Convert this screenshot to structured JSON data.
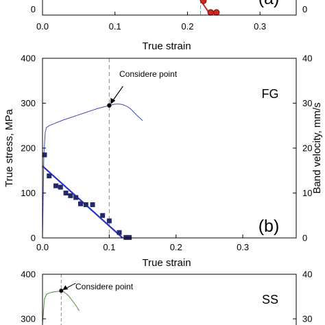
{
  "chart_data": [
    {
      "type": "scatter",
      "panel_label": "(a)",
      "xlabel": "True strain",
      "xlim": [
        0,
        0.35
      ],
      "x_ticks": [
        "0.0",
        "0.1",
        "0.2",
        "0.3"
      ],
      "y_ticks_left": [
        "0"
      ],
      "y_ticks_right": [
        "0"
      ],
      "series": [
        {
          "marker": "circle",
          "color": "#cc2a20",
          "x": [
            0.222,
            0.232,
            0.24
          ],
          "y": [
            8.0,
            1.5,
            1.5
          ]
        }
      ],
      "fit_line": {
        "color": "#cc2a20",
        "x": [
          0.205,
          0.232
        ],
        "y": [
          16.0,
          0.0
        ]
      },
      "considere_strain": 0.218
    },
    {
      "type": "line",
      "panel_label": "(b)",
      "corner_label": "FG",
      "xlabel": "True strain",
      "ylabel_left": "True stress, MPa",
      "ylabel_right": "Band velocity, mm/s",
      "xlim": [
        0,
        0.38
      ],
      "ylim_left": [
        0,
        400
      ],
      "ylim_right": [
        0,
        40
      ],
      "x_ticks": [
        "0.0",
        "0.1",
        "0.2",
        "0.3"
      ],
      "y_ticks_left": [
        "0",
        "100",
        "200",
        "300",
        "400"
      ],
      "y_ticks_right": [
        "0",
        "10",
        "20",
        "30",
        "40"
      ],
      "annotation": {
        "text": "Considere point",
        "x": 0.1,
        "y": 295
      },
      "stress_curve": {
        "color": "#3f47b4",
        "x": [
          0.0,
          0.002,
          0.004,
          0.006,
          0.01,
          0.02,
          0.03,
          0.04,
          0.05,
          0.06,
          0.07,
          0.08,
          0.09,
          0.1,
          0.105,
          0.11,
          0.115,
          0.12,
          0.125,
          0.13,
          0.135,
          0.14,
          0.145,
          0.15
        ],
        "y": [
          0,
          180,
          235,
          246,
          250,
          256,
          262,
          267,
          272,
          277,
          282,
          287,
          291,
          295,
          297,
          298,
          298,
          297,
          294,
          290,
          283,
          275,
          268,
          261
        ]
      },
      "velocity_points": {
        "marker": "square",
        "color": "#23296a",
        "x": [
          0.003,
          0.01,
          0.02,
          0.027,
          0.035,
          0.042,
          0.05,
          0.057,
          0.065,
          0.075,
          0.09,
          0.1,
          0.115,
          0.125,
          0.13
        ],
        "y": [
          18.5,
          13.8,
          11.6,
          11.3,
          10.0,
          9.4,
          9.0,
          7.6,
          7.4,
          7.4,
          5.0,
          3.8,
          1.2,
          0.1,
          0.1
        ]
      },
      "velocity_fit": {
        "color": "#2a35c6",
        "x": [
          0.0,
          0.12
        ],
        "y": [
          16.0,
          0.0
        ]
      },
      "considere_strain": 0.1
    },
    {
      "type": "line",
      "corner_label": "SS",
      "y_ticks_left": [
        "400",
        "300"
      ],
      "y_ticks_right": [
        "40",
        "30"
      ],
      "ylim_left": [
        0,
        400
      ],
      "annotation": {
        "text": "Considere point",
        "x": 0.028,
        "y": 363
      },
      "stress_curve": {
        "color": "#4d8a3a",
        "x": [
          0.0,
          0.003,
          0.006,
          0.01,
          0.015,
          0.02,
          0.025,
          0.028,
          0.032,
          0.036,
          0.04,
          0.045,
          0.05,
          0.055
        ],
        "y": [
          290,
          345,
          355,
          358,
          360,
          361,
          362,
          363,
          360,
          356,
          350,
          340,
          330,
          318
        ]
      },
      "considere_strain": 0.028
    }
  ]
}
